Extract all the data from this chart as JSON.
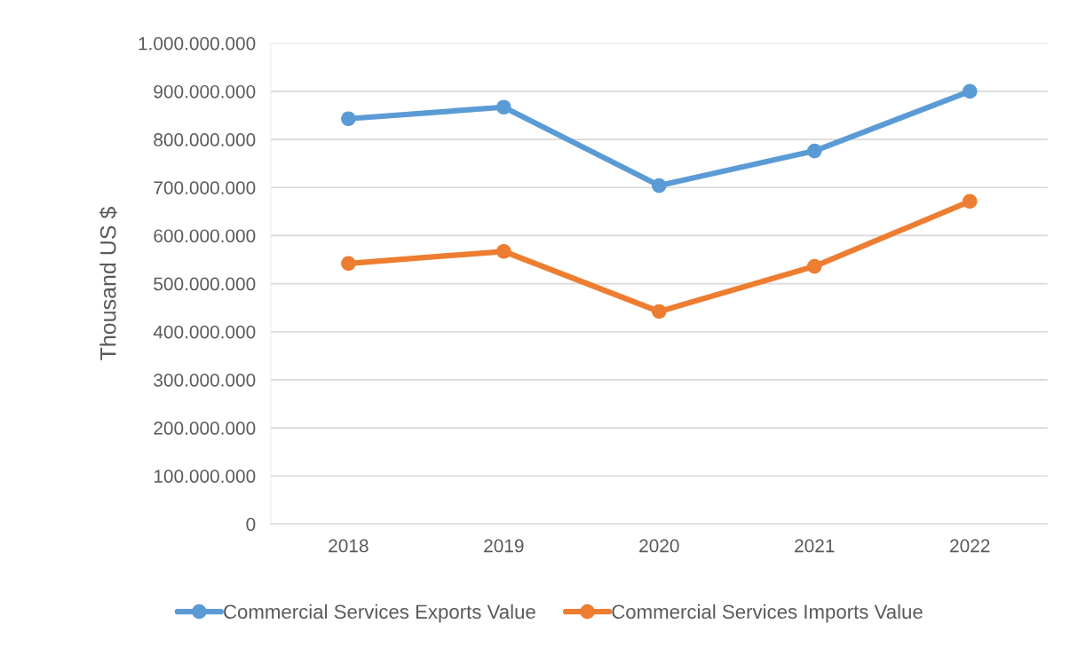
{
  "chart_data": {
    "type": "line",
    "ylabel": "Thousand US $",
    "categories": [
      "2018",
      "2019",
      "2020",
      "2021",
      "2022"
    ],
    "series": [
      {
        "name": "Commercial Services Exports Value",
        "color": "#5b9bd5",
        "values": [
          843000000,
          867000000,
          704000000,
          776000000,
          900000000
        ]
      },
      {
        "name": "Commercial Services Imports Value",
        "color": "#ed7d31",
        "values": [
          542000000,
          567000000,
          442000000,
          536000000,
          671000000
        ]
      }
    ],
    "ylim": [
      0,
      1000000000
    ],
    "yticks": [
      0,
      {
        "value": 100000000,
        "label": "100.000.000"
      },
      {
        "value": 200000000,
        "label": "200.000.000"
      },
      {
        "value": 300000000,
        "label": "300.000.000"
      },
      {
        "value": 400000000,
        "label": "400.000.000"
      },
      {
        "value": 500000000,
        "label": "500.000.000"
      },
      {
        "value": 600000000,
        "label": "600.000.000"
      },
      {
        "value": 700000000,
        "label": "700.000.000"
      },
      {
        "value": 800000000,
        "label": "800.000.000"
      },
      {
        "value": 900000000,
        "label": "900.000.000"
      },
      {
        "value": 1000000000,
        "label": "1.000.000.000"
      }
    ],
    "grid": "y",
    "legend": "bottom",
    "marker": "circle",
    "line_style": "solid"
  }
}
